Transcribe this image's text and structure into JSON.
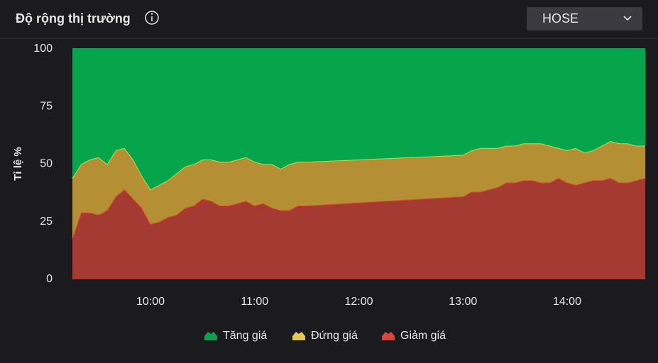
{
  "dropdown": {
    "selected": "HOSE"
  },
  "chart_data": {
    "type": "area",
    "stacked": true,
    "title": "Độ rộng thị trường",
    "y_label": "Tỉ lệ %",
    "x": [
      "09:15",
      "09:20",
      "09:25",
      "09:30",
      "09:35",
      "09:40",
      "09:45",
      "09:50",
      "09:55",
      "10:00",
      "10:05",
      "10:10",
      "10:15",
      "10:20",
      "10:25",
      "10:30",
      "10:35",
      "10:40",
      "10:45",
      "10:50",
      "10:55",
      "11:00",
      "11:05",
      "11:10",
      "11:15",
      "11:20",
      "11:25",
      "11:30",
      "13:00",
      "13:05",
      "13:10",
      "13:15",
      "13:20",
      "13:25",
      "13:30",
      "13:35",
      "13:40",
      "13:45",
      "13:50",
      "13:55",
      "14:00",
      "14:05",
      "14:10",
      "14:15",
      "14:20",
      "14:25",
      "14:30",
      "14:35",
      "14:40",
      "14:45"
    ],
    "xlim": [
      "09:15",
      "14:45"
    ],
    "xticks": [
      "10:00",
      "11:00",
      "12:00",
      "13:00",
      "14:00"
    ],
    "ylim": [
      0,
      100
    ],
    "yticks": [
      0,
      25,
      50,
      75,
      100
    ],
    "series": [
      {
        "name": "Tăng giá",
        "color": "#07a54b",
        "line_color": "#07a54b",
        "values": [
          56,
          50,
          48,
          47,
          50,
          44,
          43,
          48,
          55,
          61,
          59,
          57,
          54,
          51,
          50,
          48,
          48,
          49,
          49,
          48,
          47,
          49,
          50,
          50,
          52,
          50,
          49,
          49,
          46,
          44,
          43,
          43,
          43,
          42,
          42,
          41,
          41,
          41,
          42,
          43,
          44,
          43,
          45,
          44,
          42,
          40,
          41,
          41,
          42,
          42
        ]
      },
      {
        "name": "Đứng giá",
        "color": "#b58f33",
        "line_color": "#e8c646",
        "values": [
          26,
          21,
          23,
          25,
          20,
          20,
          18,
          17,
          14,
          15,
          16,
          16,
          18,
          18,
          18,
          17,
          18,
          19,
          19,
          19,
          19,
          19,
          17,
          19,
          18,
          20,
          19,
          19,
          18,
          18,
          19,
          18,
          17,
          16,
          16,
          16,
          16,
          17,
          16,
          13,
          14,
          16,
          13,
          13,
          15,
          16,
          17,
          17,
          15,
          14
        ]
      },
      {
        "name": "Giảm giá",
        "color": "#a53a32",
        "line_color": "#e0413b",
        "values": [
          18,
          29,
          29,
          28,
          30,
          36,
          39,
          35,
          31,
          24,
          25,
          27,
          28,
          31,
          32,
          35,
          34,
          32,
          32,
          33,
          34,
          32,
          33,
          31,
          30,
          30,
          32,
          32,
          36,
          38,
          38,
          39,
          40,
          42,
          42,
          43,
          43,
          42,
          42,
          44,
          42,
          41,
          42,
          43,
          43,
          44,
          42,
          42,
          43,
          44
        ]
      }
    ]
  }
}
